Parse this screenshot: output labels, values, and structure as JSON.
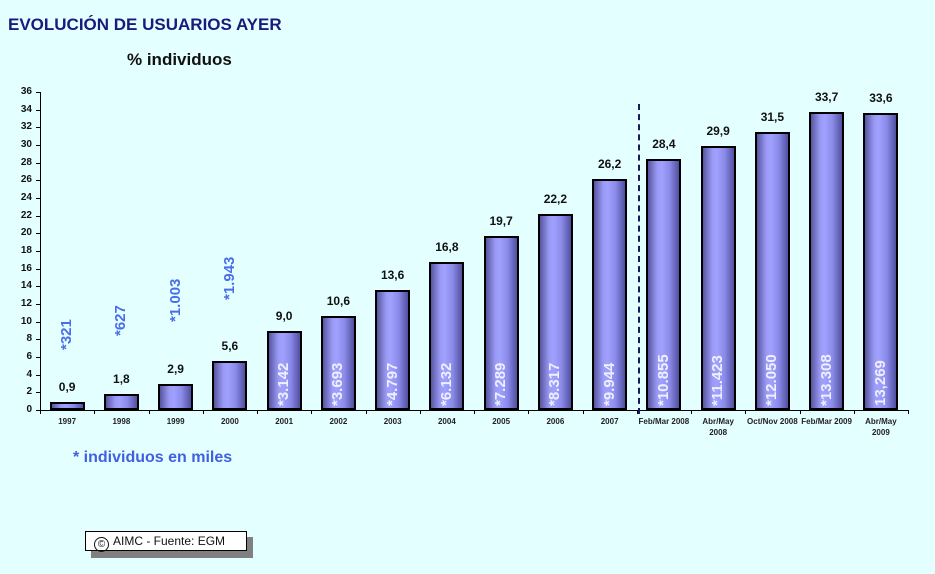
{
  "header": {
    "title": "EVOLUCIÓN DE USUARIOS AYER",
    "subtitle": "% individuos"
  },
  "footnote": "* individuos en miles",
  "source": {
    "copyright_icon": "©",
    "text": "AIMC - Fuente: EGM"
  },
  "colors": {
    "background": "#e4ffff",
    "title": "#1a1a7a",
    "bar_fill": "#9a9af5",
    "bar_border": "#000000",
    "miles_label": "#4b6ee8"
  },
  "chart_data": {
    "type": "bar",
    "title": "EVOLUCIÓN DE USUARIOS AYER",
    "subtitle": "% individuos",
    "xlabel": "",
    "ylabel": "% individuos",
    "ylim": [
      0,
      36
    ],
    "yticks": [
      0,
      2,
      4,
      6,
      8,
      10,
      12,
      14,
      16,
      18,
      20,
      22,
      24,
      26,
      28,
      30,
      32,
      34,
      36
    ],
    "grid": false,
    "categories": [
      "1997",
      "1998",
      "1999",
      "2000",
      "2001",
      "2002",
      "2003",
      "2004",
      "2005",
      "2006",
      "2007",
      "Feb/Mar 2008",
      "Abr/May 2008",
      "Oct/Nov 2008",
      "Feb/Mar 2009",
      "Abr/May 2009"
    ],
    "series": [
      {
        "name": "% individuos",
        "values": [
          0.9,
          1.8,
          2.9,
          5.6,
          9.0,
          10.6,
          13.6,
          16.8,
          19.7,
          22.2,
          26.2,
          28.4,
          29.9,
          31.5,
          33.7,
          33.6
        ],
        "labels": [
          "0,9",
          "1,8",
          "2,9",
          "5,6",
          "9,0",
          "10,6",
          "13,6",
          "16,8",
          "19,7",
          "22,2",
          "26,2",
          "28,4",
          "29,9",
          "31,5",
          "33,7",
          "33,6"
        ]
      },
      {
        "name": "individuos en miles",
        "values": [
          321,
          627,
          1003,
          1943,
          3142,
          3693,
          4797,
          6132,
          7289,
          8317,
          9944,
          10855,
          11423,
          12050,
          13308,
          13269
        ],
        "labels": [
          "*321",
          "*627",
          "*1.003",
          "*1.943",
          "*3.142",
          "*3.693",
          "*4.797",
          "*6.132",
          "*7.289",
          "*8.317",
          "*9.944",
          "*10.855",
          "*11.423",
          "*12.050",
          "*13.308",
          "13,269"
        ]
      }
    ],
    "annotations": [
      "dashed vertical divider between 2007 and Feb/Mar 2008",
      "* individuos en miles",
      "© AIMC - Fuente: EGM"
    ],
    "legend": "none"
  }
}
